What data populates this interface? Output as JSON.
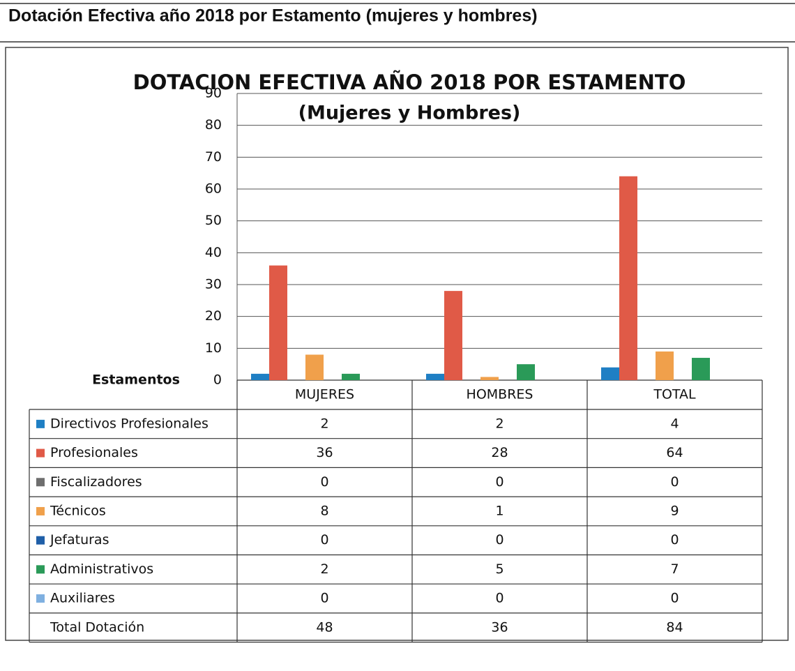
{
  "header": {
    "title": "Dotación Efectiva año 2018 por Estamento (mujeres y hombres)"
  },
  "chart_data": {
    "type": "bar",
    "title": "DOTACION EFECTIVA AÑO 2018 POR ESTAMENTO",
    "subtitle": "(Mujeres y Hombres)",
    "table_label": "Estamentos",
    "categories": [
      "MUJERES",
      "HOMBRES",
      "TOTAL"
    ],
    "series": [
      {
        "name": "Directivos Profesionales",
        "color": "#1f7fc4",
        "values": [
          2,
          2,
          4
        ]
      },
      {
        "name": "Profesionales",
        "color": "#e05a47",
        "values": [
          36,
          28,
          64
        ]
      },
      {
        "name": "Fiscalizadores",
        "color": "#6e6e6e",
        "values": [
          0,
          0,
          0
        ]
      },
      {
        "name": "Técnicos",
        "color": "#f0a04b",
        "values": [
          8,
          1,
          9
        ]
      },
      {
        "name": "Jefaturas",
        "color": "#1f5fa8",
        "values": [
          0,
          0,
          0
        ]
      },
      {
        "name": "Administrativos",
        "color": "#2a9a58",
        "values": [
          2,
          5,
          7
        ]
      },
      {
        "name": "Auxiliares",
        "color": "#7fb0e0",
        "values": [
          0,
          0,
          0
        ]
      }
    ],
    "total_row": {
      "name": "Total Dotación",
      "values": [
        48,
        36,
        84
      ]
    },
    "ylim": [
      0,
      90
    ],
    "yticks": [
      0,
      10,
      20,
      30,
      40,
      50,
      60,
      70,
      80,
      90
    ],
    "grid": true
  }
}
